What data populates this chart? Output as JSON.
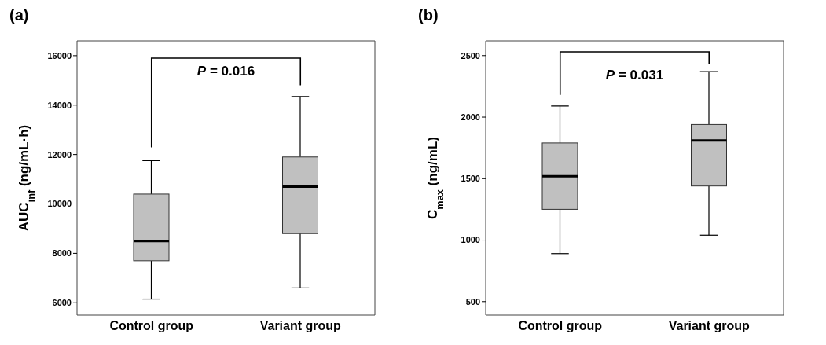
{
  "chart_data": [
    {
      "type": "box",
      "title": "(a)",
      "ylabel": "AUC$_{inf}$ (ng/mL·h)",
      "categories": [
        "Control group",
        "Variant group"
      ],
      "color": "#c0c0c0",
      "boxes": [
        {
          "low": 6150,
          "q1": 7700,
          "median": 8500,
          "q3": 10400,
          "high": 11750
        },
        {
          "low": 6600,
          "q1": 8800,
          "median": 10700,
          "q3": 11900,
          "high": 14350
        }
      ],
      "ylim": [
        5500,
        16600
      ],
      "yticks": [
        6000,
        8000,
        10000,
        12000,
        14000,
        16000
      ],
      "grid": false,
      "annotations": [
        "P = 0.016"
      ]
    },
    {
      "type": "box",
      "title": "(b)",
      "ylabel": "C$_{max}$ (ng/mL)",
      "categories": [
        "Control group",
        "Variant group"
      ],
      "color": "#c0c0c0",
      "boxes": [
        {
          "low": 890,
          "q1": 1250,
          "median": 1520,
          "q3": 1790,
          "high": 2090
        },
        {
          "low": 1040,
          "q1": 1440,
          "median": 1810,
          "q3": 1940,
          "high": 2370
        }
      ],
      "ylim": [
        390,
        2620
      ],
      "yticks": [
        500,
        1000,
        1500,
        2000,
        2500
      ],
      "grid": false,
      "annotations": [
        "P = 0.031"
      ]
    }
  ]
}
